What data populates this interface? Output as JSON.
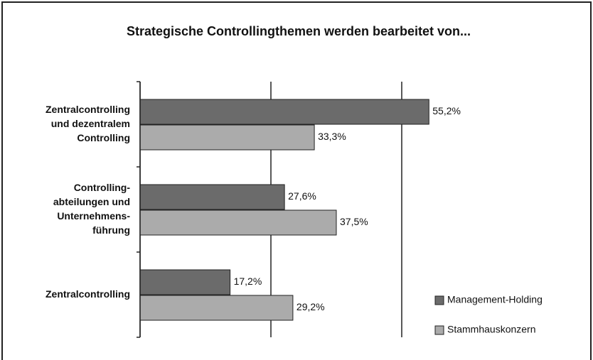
{
  "chart_data": {
    "type": "hbar",
    "title": "Strategische Controllingthemen werden bearbeitet von...",
    "categories": [
      "Zentralcontrolling\nund dezentralem\nControlling",
      "Controlling-\nabteilungen und\nUnternehmens-\nführung",
      "Zentralcontrolling"
    ],
    "series": [
      {
        "name": "Management-Holding",
        "color": "#6b6b6b",
        "values": [
          55.2,
          27.6,
          17.2
        ],
        "value_labels": [
          "55,2%",
          "27,6%",
          "17,2%"
        ]
      },
      {
        "name": "Stammhauskonzern",
        "color": "#ababab",
        "values": [
          33.3,
          37.5,
          29.2
        ],
        "value_labels": [
          "33,3%",
          "37,5%",
          "29,2%"
        ]
      }
    ],
    "xlim": [
      0,
      75
    ],
    "xticks": [
      0,
      25,
      50
    ],
    "grid": true,
    "legend": "lower right"
  }
}
